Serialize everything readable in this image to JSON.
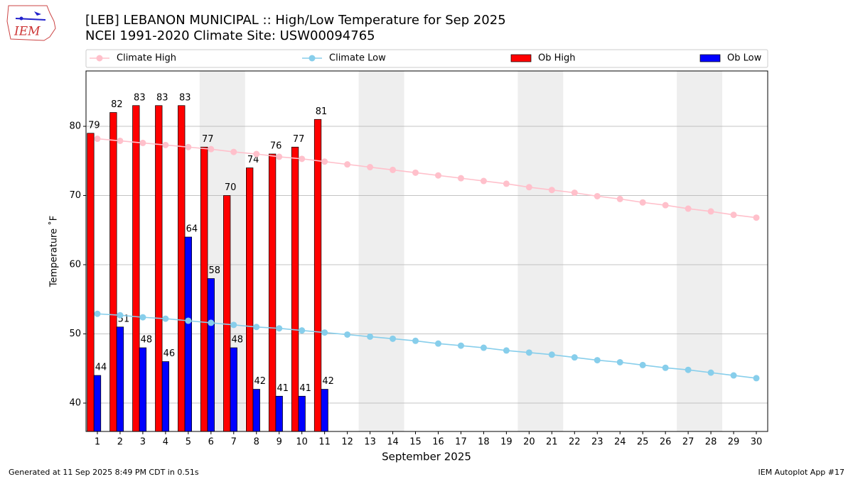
{
  "chart_data": {
    "type": "bar",
    "title": "[LEB] LEBANON MUNICIPAL :: High/Low Temperature for Sep 2025",
    "subtitle": "NCEI 1991-2020 Climate Site: USW00094765",
    "x_label": "September 2025",
    "y_label": "Temperature ˚F",
    "footer_left": "Generated at 11 Sep 2025 8:49 PM CDT in 0.51s",
    "footer_right": "IEM Autoplot App #17",
    "logo_text": "IEM",
    "x": [
      1,
      2,
      3,
      4,
      5,
      6,
      7,
      8,
      9,
      10,
      11,
      12,
      13,
      14,
      15,
      16,
      17,
      18,
      19,
      20,
      21,
      22,
      23,
      24,
      25,
      26,
      27,
      28,
      29,
      30
    ],
    "xlim": [
      0.5,
      30.5
    ],
    "xticks": [
      1,
      2,
      3,
      4,
      5,
      6,
      7,
      8,
      9,
      10,
      11,
      12,
      13,
      14,
      15,
      16,
      17,
      18,
      19,
      20,
      21,
      22,
      23,
      24,
      25,
      26,
      27,
      28,
      29,
      30
    ],
    "ylim": [
      35.9,
      88
    ],
    "yticks": [
      40,
      50,
      60,
      70,
      80
    ],
    "grid": true,
    "shaded_spans": [
      [
        5.5,
        7.5
      ],
      [
        12.5,
        14.5
      ],
      [
        19.5,
        21.5
      ],
      [
        26.5,
        28.5
      ]
    ],
    "series": [
      {
        "name": "Climate High",
        "type": "line",
        "color": "#ffc0cb",
        "values": [
          78.2,
          77.9,
          77.6,
          77.3,
          77.0,
          76.7,
          76.3,
          76.0,
          75.6,
          75.3,
          74.9,
          74.5,
          74.1,
          73.7,
          73.3,
          72.9,
          72.5,
          72.1,
          71.7,
          71.2,
          70.8,
          70.4,
          69.9,
          69.5,
          69.0,
          68.6,
          68.1,
          67.7,
          67.2,
          66.8
        ]
      },
      {
        "name": "Climate Low",
        "type": "line",
        "color": "#87ceeb",
        "values": [
          52.9,
          52.7,
          52.4,
          52.2,
          51.9,
          51.6,
          51.3,
          51.0,
          50.8,
          50.5,
          50.2,
          49.9,
          49.6,
          49.3,
          49.0,
          48.6,
          48.3,
          48.0,
          47.6,
          47.3,
          47.0,
          46.6,
          46.2,
          45.9,
          45.5,
          45.1,
          44.8,
          44.4,
          44.0,
          43.6
        ]
      },
      {
        "name": "Ob High",
        "type": "bar",
        "color": "#ff0000",
        "values": [
          79,
          82,
          83,
          83,
          83,
          77,
          70,
          74,
          76,
          77,
          81,
          null,
          null,
          null,
          null,
          null,
          null,
          null,
          null,
          null,
          null,
          null,
          null,
          null,
          null,
          null,
          null,
          null,
          null,
          null
        ]
      },
      {
        "name": "Ob Low",
        "type": "bar",
        "color": "#0000ff",
        "values": [
          44,
          51,
          48,
          46,
          64,
          58,
          48,
          42,
          41,
          41,
          42,
          null,
          null,
          null,
          null,
          null,
          null,
          null,
          null,
          null,
          null,
          null,
          null,
          null,
          null,
          null,
          null,
          null,
          null,
          null
        ]
      }
    ]
  }
}
